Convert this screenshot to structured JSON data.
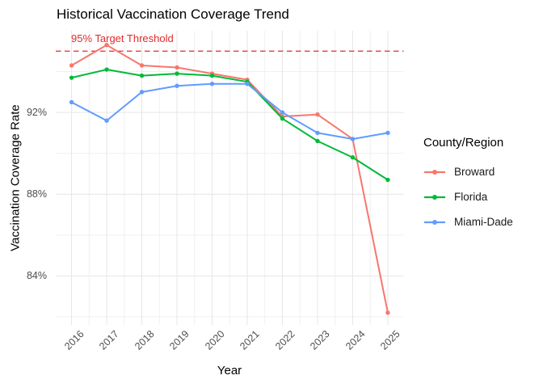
{
  "chart_data": {
    "type": "line",
    "title": "Historical Vaccination Coverage Trend",
    "xlabel": "Year",
    "ylabel": "Vaccination Coverage Rate",
    "x": [
      2016,
      2017,
      2018,
      2019,
      2020,
      2021,
      2022,
      2023,
      2024,
      2025
    ],
    "x_tick_labels": [
      "2016",
      "2017",
      "2018",
      "2019",
      "2020",
      "2021",
      "2022",
      "2023",
      "2024",
      "2025"
    ],
    "y_tick_values": [
      84,
      88,
      92
    ],
    "y_tick_labels": [
      "84%",
      "88%",
      "92%"
    ],
    "series": [
      {
        "name": "Broward",
        "color": "#F8766D",
        "values": [
          94.3,
          95.3,
          94.3,
          94.2,
          93.9,
          93.6,
          91.8,
          91.9,
          90.7,
          82.2
        ]
      },
      {
        "name": "Florida",
        "color": "#00BA38",
        "values": [
          93.7,
          94.1,
          93.8,
          93.9,
          93.8,
          93.5,
          91.7,
          90.6,
          89.8,
          88.7
        ]
      },
      {
        "name": "Miami-Dade",
        "color": "#619CFF",
        "values": [
          92.5,
          91.6,
          93.0,
          93.3,
          93.4,
          93.4,
          92.0,
          91.0,
          90.7,
          91.0
        ]
      }
    ],
    "threshold": {
      "value": 95,
      "label": "95% Target Threshold",
      "color": "#E02B2B",
      "style": "dashed"
    },
    "legend": {
      "title": "County/Region",
      "position": "right"
    },
    "xlim": [
      2015.55,
      2025.45
    ],
    "ylim": [
      81.6,
      96.0
    ],
    "grid": "major-minor",
    "background": "#FFFFFF",
    "grid_major_color": "#E6E6E6",
    "grid_minor_color": "#F0F0F0",
    "tick_label_color": "#4D4D4D"
  }
}
